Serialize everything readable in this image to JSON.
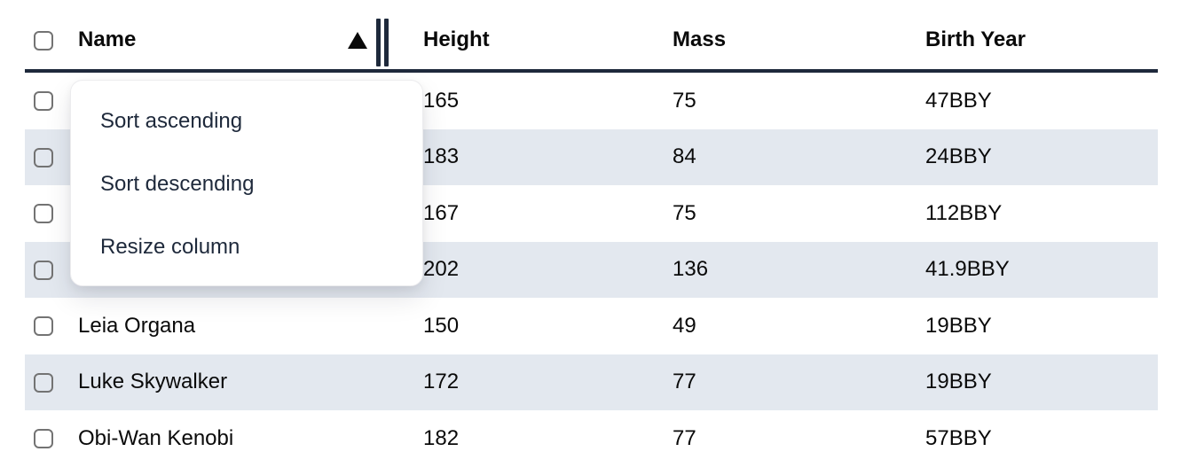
{
  "table": {
    "columns": [
      {
        "label": "Name",
        "sort": "ascending"
      },
      {
        "label": "Height",
        "sort": ""
      },
      {
        "label": "Mass",
        "sort": ""
      },
      {
        "label": "Birth Year",
        "sort": ""
      }
    ],
    "select_all_checked": false,
    "rows": [
      {
        "selected": false,
        "name": "",
        "height": "165",
        "mass": "75",
        "birth_year": "47BBY"
      },
      {
        "selected": false,
        "name": "",
        "height": "183",
        "mass": "84",
        "birth_year": "24BBY"
      },
      {
        "selected": false,
        "name": "",
        "height": "167",
        "mass": "75",
        "birth_year": "112BBY"
      },
      {
        "selected": false,
        "name": "",
        "height": "202",
        "mass": "136",
        "birth_year": "41.9BBY"
      },
      {
        "selected": false,
        "name": "Leia Organa",
        "height": "150",
        "mass": "49",
        "birth_year": "19BBY"
      },
      {
        "selected": false,
        "name": "Luke Skywalker",
        "height": "172",
        "mass": "77",
        "birth_year": "19BBY"
      },
      {
        "selected": false,
        "name": "Obi-Wan Kenobi",
        "height": "182",
        "mass": "77",
        "birth_year": "57BBY"
      }
    ]
  },
  "context_menu": {
    "items": [
      {
        "label": "Sort ascending"
      },
      {
        "label": "Sort descending"
      },
      {
        "label": "Resize column"
      }
    ]
  },
  "icons": {
    "sort_indicator": "triangle-up",
    "column_resize": "double-vertical-bars"
  },
  "colors": {
    "row_stripe": "#e3e8ef",
    "header_border": "#1e293b",
    "resize_handle": "#1e293b",
    "menu_text": "#1e293b",
    "body_text": "#0a0a0a",
    "checkbox_border": "#737373",
    "menu_background": "#ffffff"
  }
}
